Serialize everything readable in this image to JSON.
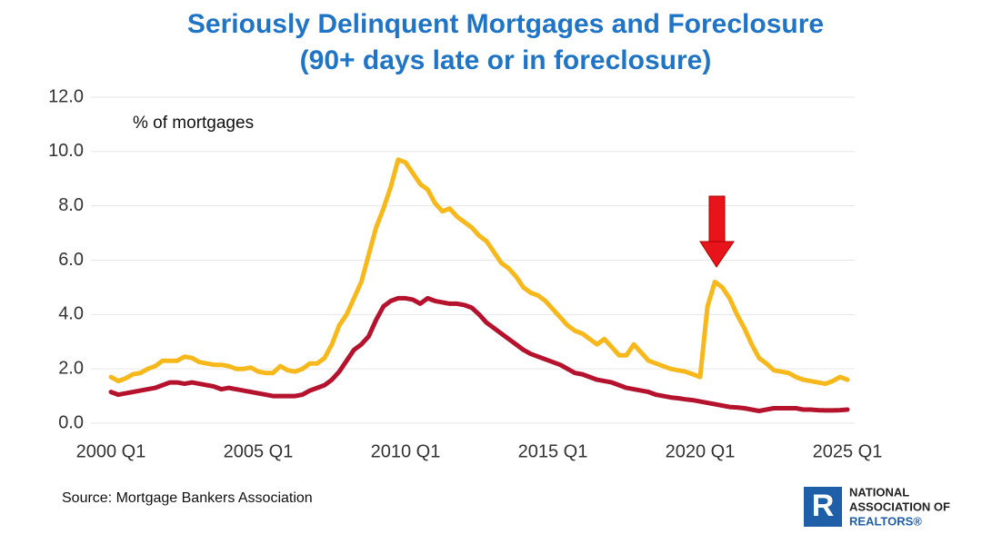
{
  "chart_data": {
    "type": "line",
    "title": "Seriously Delinquent Mortgages and Foreclosure",
    "subtitle": "(90+ days late or in foreclosure)",
    "annotation": "% of mortgages",
    "source": "Source: Mortgage Bankers Association",
    "categories": [
      "2000 Q1",
      null,
      null,
      null,
      null,
      null,
      null,
      null,
      null,
      null,
      null,
      null,
      null,
      null,
      null,
      null,
      null,
      null,
      null,
      null,
      "2005 Q1",
      null,
      null,
      null,
      null,
      null,
      null,
      null,
      null,
      null,
      null,
      null,
      null,
      null,
      null,
      null,
      null,
      null,
      null,
      null,
      "2010 Q1",
      null,
      null,
      null,
      null,
      null,
      null,
      null,
      null,
      null,
      null,
      null,
      null,
      null,
      null,
      null,
      null,
      null,
      null,
      null,
      "2015 Q1",
      null,
      null,
      null,
      null,
      null,
      null,
      null,
      null,
      null,
      null,
      null,
      null,
      null,
      null,
      null,
      null,
      null,
      null,
      null,
      "2020 Q1",
      null,
      null,
      null,
      null,
      null,
      null,
      null,
      null,
      null,
      null,
      null,
      null,
      null,
      null,
      null,
      null,
      null,
      null,
      null,
      "2025 Q1"
    ],
    "series": [
      {
        "color": "#f6b81a",
        "values": [
          1.7,
          1.55,
          1.65,
          1.8,
          1.85,
          2.0,
          2.1,
          2.3,
          2.3,
          2.3,
          2.45,
          2.4,
          2.25,
          2.2,
          2.15,
          2.15,
          2.1,
          2.0,
          2.0,
          2.05,
          1.9,
          1.85,
          1.85,
          2.1,
          1.95,
          1.9,
          2.0,
          2.2,
          2.2,
          2.4,
          2.9,
          3.6,
          4.0,
          4.6,
          5.2,
          6.2,
          7.2,
          7.9,
          8.7,
          9.7,
          9.6,
          9.2,
          8.8,
          8.6,
          8.1,
          7.8,
          7.9,
          7.6,
          7.4,
          7.2,
          6.9,
          6.7,
          6.3,
          5.9,
          5.7,
          5.4,
          5.0,
          4.8,
          4.7,
          4.5,
          4.2,
          3.9,
          3.6,
          3.4,
          3.3,
          3.1,
          2.9,
          3.1,
          2.8,
          2.5,
          2.5,
          2.9,
          2.6,
          2.3,
          2.2,
          2.1,
          2.0,
          1.95,
          1.9,
          1.8,
          1.7,
          4.3,
          5.2,
          5.0,
          4.6,
          4.0,
          3.5,
          2.9,
          2.4,
          2.2,
          1.95,
          1.9,
          1.85,
          1.7,
          1.6,
          1.55,
          1.5,
          1.45,
          1.55,
          1.7,
          1.6
        ]
      },
      {
        "color": "#b5122d",
        "values": [
          1.15,
          1.05,
          1.1,
          1.15,
          1.2,
          1.25,
          1.3,
          1.4,
          1.5,
          1.5,
          1.45,
          1.5,
          1.45,
          1.4,
          1.35,
          1.25,
          1.3,
          1.25,
          1.2,
          1.15,
          1.1,
          1.05,
          1.0,
          1.0,
          1.0,
          1.0,
          1.05,
          1.2,
          1.3,
          1.4,
          1.6,
          1.9,
          2.3,
          2.7,
          2.9,
          3.2,
          3.8,
          4.3,
          4.5,
          4.6,
          4.6,
          4.55,
          4.4,
          4.6,
          4.5,
          4.45,
          4.4,
          4.4,
          4.35,
          4.25,
          4.0,
          3.7,
          3.5,
          3.3,
          3.1,
          2.9,
          2.7,
          2.55,
          2.45,
          2.35,
          2.25,
          2.15,
          2.0,
          1.85,
          1.8,
          1.7,
          1.6,
          1.55,
          1.5,
          1.4,
          1.3,
          1.25,
          1.2,
          1.15,
          1.05,
          1.0,
          0.95,
          0.92,
          0.88,
          0.85,
          0.8,
          0.75,
          0.7,
          0.65,
          0.6,
          0.58,
          0.55,
          0.5,
          0.45,
          0.5,
          0.55,
          0.55,
          0.55,
          0.55,
          0.5,
          0.5,
          0.48,
          0.47,
          0.47,
          0.48,
          0.5
        ]
      }
    ],
    "ylim": [
      0,
      12
    ],
    "yticks": [
      {
        "value": 0,
        "label": "0.0"
      },
      {
        "value": 2,
        "label": "2.0"
      },
      {
        "value": 4,
        "label": "4.0"
      },
      {
        "value": 6,
        "label": "6.0"
      },
      {
        "value": 8,
        "label": "8.0"
      },
      {
        "value": 10,
        "label": "10.0"
      },
      {
        "value": 12,
        "label": "12.0"
      }
    ],
    "grid": true
  },
  "logo": {
    "lines": [
      "NATIONAL",
      "ASSOCIATION OF",
      "REALTORS®"
    ]
  }
}
